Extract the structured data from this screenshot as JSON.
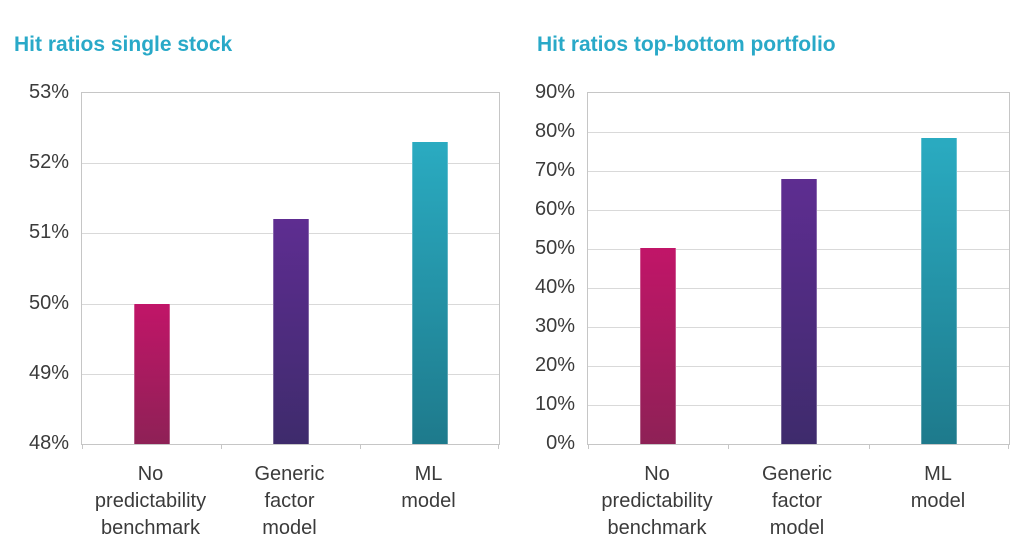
{
  "colors": {
    "background": "#ffffff",
    "title_text": "#29a9c8",
    "axis_text": "#3b3b3b",
    "gridline": "#d9d9d9",
    "plot_border": "#c6c6c6",
    "bar_gradients": [
      {
        "name": "no-predictability-benchmark",
        "top": "#c11568",
        "bottom": "#8e2156"
      },
      {
        "name": "generic-factor-model",
        "top": "#5e2d91",
        "bottom": "#3e2b6c"
      },
      {
        "name": "ml-model",
        "top": "#2aabc1",
        "bottom": "#1e7a8c"
      }
    ]
  },
  "chart_data": [
    {
      "type": "bar",
      "title": "Hit ratios single stock",
      "categories": [
        [
          "No",
          "predictability",
          "benchmark"
        ],
        [
          "Generic",
          "factor",
          "model"
        ],
        [
          "ML",
          "model"
        ]
      ],
      "values": [
        50.0,
        51.2,
        52.3
      ],
      "unit": "%",
      "ylim": [
        48,
        53
      ],
      "ytick_step": 1,
      "ytick_labels": [
        "53%",
        "52%",
        "51%",
        "50%",
        "49%",
        "48%"
      ],
      "xlabel": "",
      "ylabel": "",
      "grid": true,
      "legend": "none"
    },
    {
      "type": "bar",
      "title": "Hit ratios top-bottom portfolio",
      "categories": [
        [
          "No",
          "predictability",
          "benchmark"
        ],
        [
          "Generic",
          "factor",
          "model"
        ],
        [
          "ML",
          "model"
        ]
      ],
      "values": [
        50.3,
        68.0,
        78.5
      ],
      "unit": "%",
      "ylim": [
        0,
        90
      ],
      "ytick_step": 10,
      "ytick_labels": [
        "90%",
        "80%",
        "70%",
        "60%",
        "50%",
        "40%",
        "30%",
        "20%",
        "10%",
        "0%"
      ],
      "xlabel": "",
      "ylabel": "",
      "grid": true,
      "legend": "none"
    }
  ]
}
